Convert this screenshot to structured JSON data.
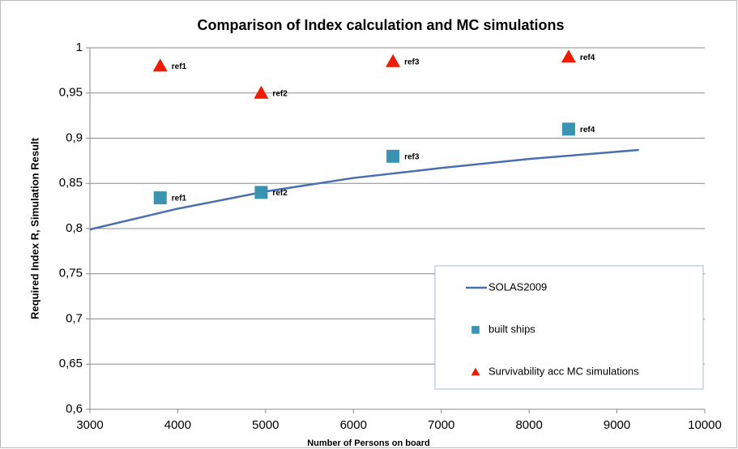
{
  "chart_data": {
    "type": "scatter",
    "title": "Comparison of Index calculation and MC simulations",
    "xlabel": "Number of Persons on board",
    "ylabel": "Required Index R, Simulation Result",
    "xlim": [
      3000,
      10000
    ],
    "xticks": [
      3000,
      4000,
      5000,
      6000,
      7000,
      8000,
      9000,
      10000
    ],
    "ylim": [
      0.6,
      1
    ],
    "yticks": [
      {
        "value": 0.6,
        "label": "0,6"
      },
      {
        "value": 0.65,
        "label": "0,65"
      },
      {
        "value": 0.7,
        "label": "0,7"
      },
      {
        "value": 0.75,
        "label": "0,75"
      },
      {
        "value": 0.8,
        "label": "0,8"
      },
      {
        "value": 0.85,
        "label": "0,85"
      },
      {
        "value": 0.9,
        "label": "0,9"
      },
      {
        "value": 0.95,
        "label": "0,95"
      },
      1
    ],
    "grid": true,
    "legend": "lower right",
    "series": [
      {
        "name": "SOLAS2009",
        "kind": "line",
        "color": "#4a6fb0",
        "x": [
          3000,
          4000,
          5000,
          6000,
          7000,
          8000,
          9250
        ],
        "values": [
          0.799,
          0.822,
          0.841,
          0.856,
          0.867,
          0.877,
          0.887
        ]
      },
      {
        "name": "built ships",
        "kind": "square",
        "color": "#3a93b0",
        "x": [
          3800,
          4950,
          6450,
          8450
        ],
        "values": [
          0.834,
          0.84,
          0.88,
          0.91
        ],
        "labels": [
          "ref1",
          "ref2",
          "ref3",
          "ref4"
        ]
      },
      {
        "name": "Survivability acc MC simulations",
        "kind": "triangle",
        "color": "#ee1c00",
        "x": [
          3800,
          4950,
          6450,
          8450
        ],
        "values": [
          0.98,
          0.95,
          0.985,
          0.99
        ],
        "labels": [
          "ref1",
          "ref2",
          "ref3",
          "ref4"
        ]
      }
    ]
  }
}
